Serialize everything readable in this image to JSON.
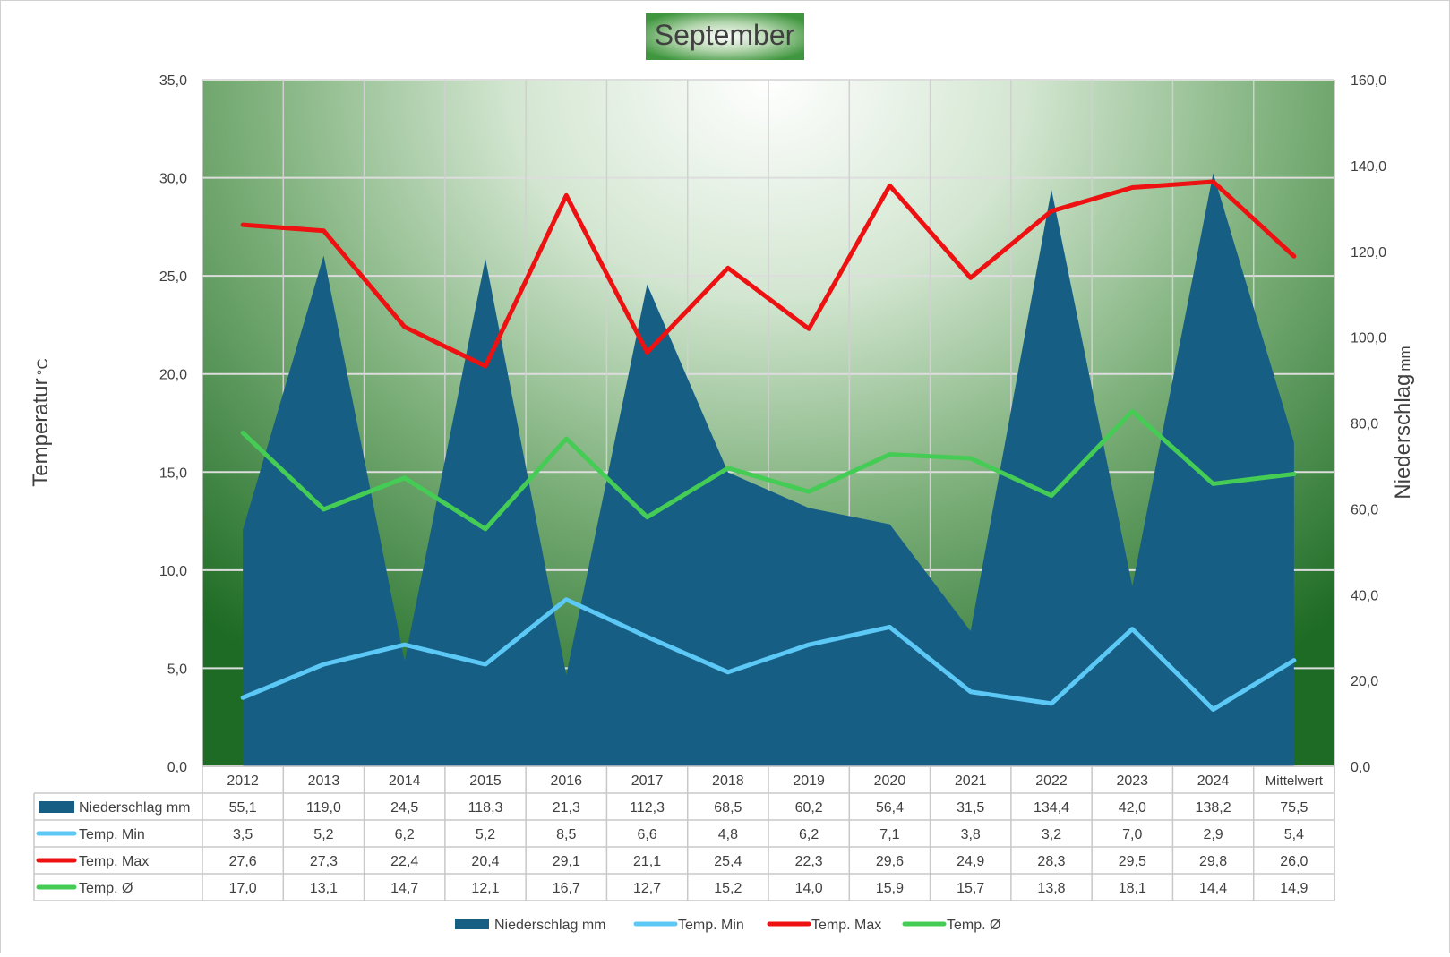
{
  "chart_data": {
    "type": "area",
    "title": "September",
    "y_left_label": "Temperatur",
    "y_left_unit": "°C",
    "y_right_label": "Niederschlag",
    "y_right_unit": "mm",
    "y_left_range": [
      0,
      35
    ],
    "y_right_range": [
      0,
      160
    ],
    "y_left_ticks": [
      "0,0",
      "5,0",
      "10,0",
      "15,0",
      "20,0",
      "25,0",
      "30,0",
      "35,0"
    ],
    "y_right_ticks": [
      "0,0",
      "20,0",
      "40,0",
      "60,0",
      "80,0",
      "100,0",
      "120,0",
      "140,0",
      "160,0"
    ],
    "grid": true,
    "legend_position": "bottom",
    "categories": [
      "2012",
      "2013",
      "2014",
      "2015",
      "2016",
      "2017",
      "2018",
      "2019",
      "2020",
      "2021",
      "2022",
      "2023",
      "2024",
      "Mittelwert"
    ],
    "series": [
      {
        "name": "Niederschlag mm",
        "type": "area",
        "axis": "right",
        "color": "#175e84",
        "values": [
          55.1,
          119.0,
          24.5,
          118.3,
          21.3,
          112.3,
          68.5,
          60.2,
          56.4,
          31.5,
          134.4,
          42.0,
          138.2,
          75.5
        ],
        "labels": [
          "55,1",
          "119,0",
          "24,5",
          "118,3",
          "21,3",
          "112,3",
          "68,5",
          "60,2",
          "56,4",
          "31,5",
          "134,4",
          "42,0",
          "138,2",
          "75,5"
        ]
      },
      {
        "name": "Temp. Min",
        "type": "line",
        "axis": "left",
        "color": "#5bc8f5",
        "values": [
          3.5,
          5.2,
          6.2,
          5.2,
          8.5,
          6.6,
          4.8,
          6.2,
          7.1,
          3.8,
          3.2,
          7.0,
          2.9,
          5.4
        ],
        "labels": [
          "3,5",
          "5,2",
          "6,2",
          "5,2",
          "8,5",
          "6,6",
          "4,8",
          "6,2",
          "7,1",
          "3,8",
          "3,2",
          "7,0",
          "2,9",
          "5,4"
        ]
      },
      {
        "name": "Temp. Max",
        "type": "line",
        "axis": "left",
        "color": "#ee1111",
        "values": [
          27.6,
          27.3,
          22.4,
          20.4,
          29.1,
          21.1,
          25.4,
          22.3,
          29.6,
          24.9,
          28.3,
          29.5,
          29.8,
          26.0
        ],
        "labels": [
          "27,6",
          "27,3",
          "22,4",
          "20,4",
          "29,1",
          "21,1",
          "25,4",
          "22,3",
          "29,6",
          "24,9",
          "28,3",
          "29,5",
          "29,8",
          "26,0"
        ]
      },
      {
        "name": "Temp. Ø",
        "type": "line",
        "axis": "left",
        "color": "#44cc55",
        "values": [
          17.0,
          13.1,
          14.7,
          12.1,
          16.7,
          12.7,
          15.2,
          14.0,
          15.9,
          15.7,
          13.8,
          18.1,
          14.4,
          14.9
        ],
        "labels": [
          "17,0",
          "13,1",
          "14,7",
          "12,1",
          "16,7",
          "12,7",
          "15,2",
          "14,0",
          "15,9",
          "15,7",
          "13,8",
          "18,1",
          "14,4",
          "14,9"
        ]
      }
    ]
  }
}
